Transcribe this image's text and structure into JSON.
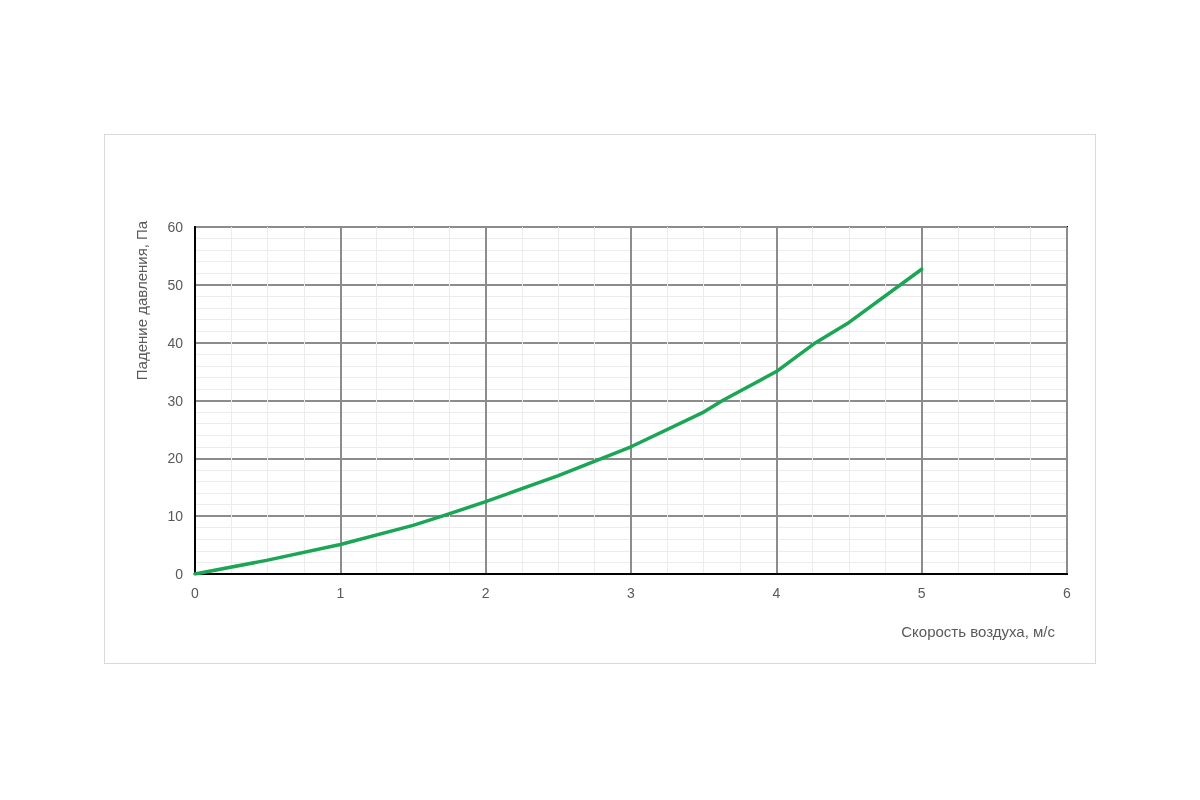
{
  "chart_data": {
    "type": "line",
    "xlabel": "Скорость воздуха, м/с",
    "ylabel": "Падение давления, Па",
    "x": [
      0,
      0.5,
      1,
      1.5,
      1.7,
      2,
      2.5,
      2.8,
      3,
      3.5,
      3.63,
      4,
      4.27,
      4.5,
      5
    ],
    "series": [
      {
        "color": "#1aa655",
        "values": [
          0,
          2.4,
          5.1,
          8.4,
          10,
          12.5,
          17,
          20,
          22,
          28,
          30,
          35,
          40,
          43.5,
          52.7
        ]
      }
    ],
    "xlim": [
      0,
      6
    ],
    "xticks": [
      0,
      1,
      2,
      3,
      4,
      5,
      6
    ],
    "ylim": [
      0,
      60
    ],
    "yticks": [
      0,
      10,
      20,
      30,
      40,
      50,
      60
    ],
    "grid": true,
    "marker": "none",
    "line_style": "solid"
  }
}
